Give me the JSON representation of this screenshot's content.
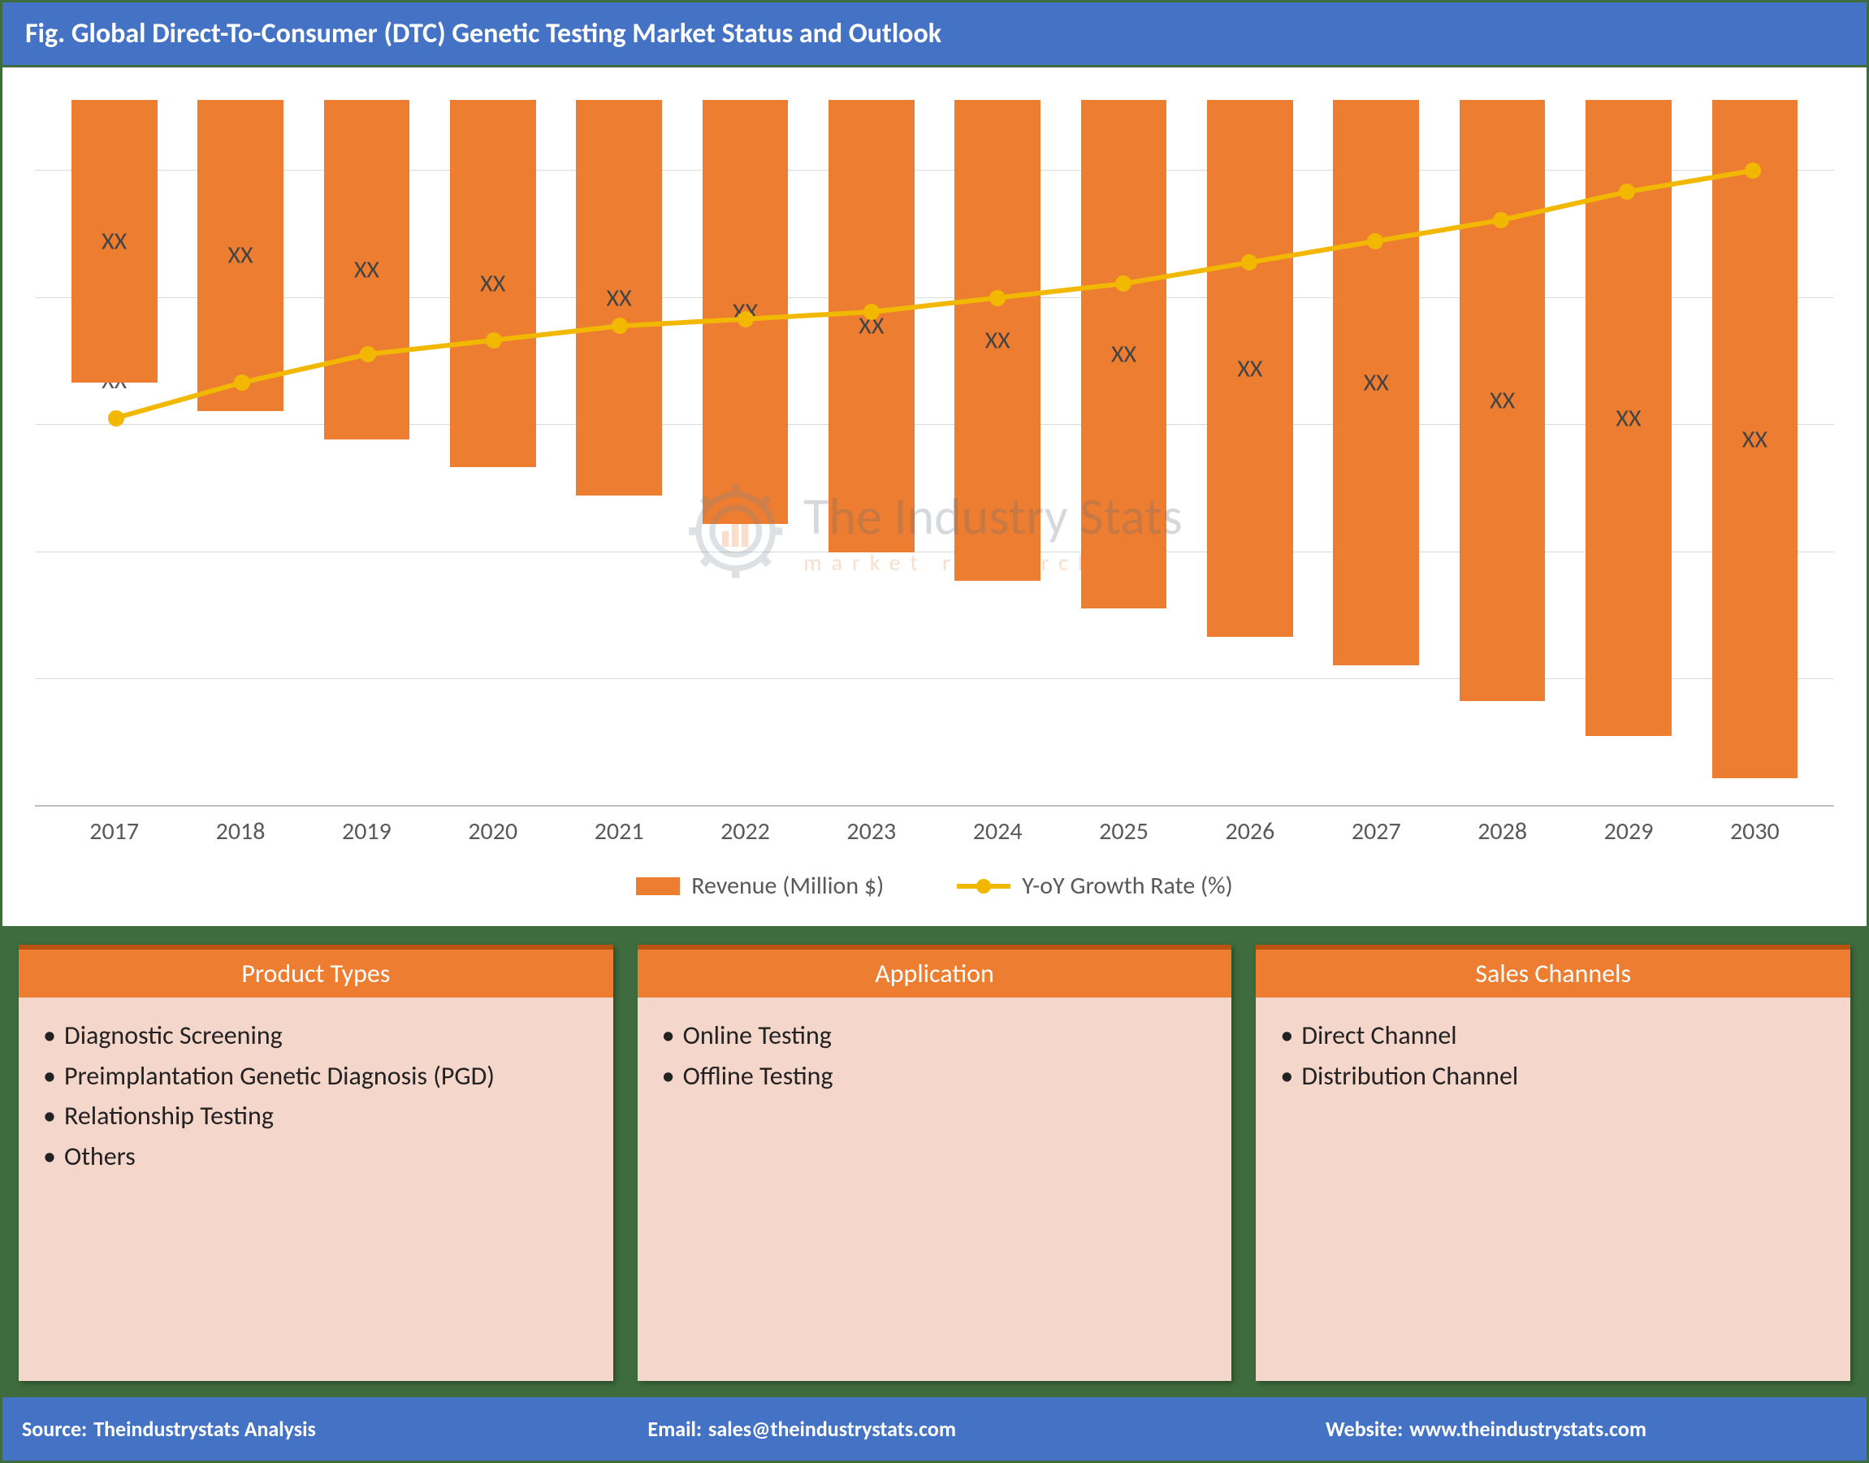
{
  "header": {
    "title": "Fig. Global Direct-To-Consumer (DTC) Genetic Testing Market Status and Outlook"
  },
  "chart": {
    "type": "bar+line",
    "background_color": "#ffffff",
    "grid_color": "#d9d9d9",
    "baseline_color": "#bfbfbf",
    "bar_color": "#ec7d31",
    "line_color": "#f2b800",
    "line_width": 6,
    "marker_radius": 10,
    "value_placeholder": "XX",
    "y_range": [
      0,
      100
    ],
    "gridline_percents": [
      18,
      36,
      54,
      72,
      90
    ],
    "label_fontsize": 30,
    "label_color": "#595959",
    "bar_width_percent": 68,
    "years": [
      "2017",
      "2018",
      "2019",
      "2020",
      "2021",
      "2022",
      "2023",
      "2024",
      "2025",
      "2026",
      "2027",
      "2028",
      "2029",
      "2030"
    ],
    "bar_heights_percent": [
      40,
      44,
      48,
      52,
      56,
      60,
      64,
      68,
      72,
      76,
      80,
      85,
      90,
      96
    ],
    "line_heights_percent": [
      55,
      60,
      64,
      66,
      68,
      69,
      70,
      72,
      74,
      77,
      80,
      83,
      87,
      90
    ],
    "legend": {
      "bar_label": "Revenue (Million $)",
      "line_label": "Y-oY Growth Rate (%)"
    }
  },
  "watermark": {
    "main": "The Industry Stats",
    "sub": "market research",
    "gear_color": "#7a8a96",
    "bar_color": "#ec7d31"
  },
  "cards": [
    {
      "title": "Product Types",
      "header_bg": "#ec7d31",
      "body_bg": "#f5d6ca",
      "items": [
        "Diagnostic Screening",
        "Preimplantation Genetic Diagnosis (PGD)",
        "Relationship Testing",
        "Others"
      ]
    },
    {
      "title": "Application",
      "header_bg": "#ec7d31",
      "body_bg": "#f5d6ca",
      "items": [
        "Online Testing",
        "Offline Testing"
      ]
    },
    {
      "title": "Sales Channels",
      "header_bg": "#ec7d31",
      "body_bg": "#f5d6ca",
      "items": [
        "Direct Channel",
        "Distribution Channel"
      ]
    }
  ],
  "footer": {
    "source_label": "Source:",
    "source_value": "Theindustrystats Analysis",
    "email_label": "Email:",
    "email_value": "sales@theindustrystats.com",
    "website_label": "Website:",
    "website_value": "www.theindustrystats.com"
  }
}
